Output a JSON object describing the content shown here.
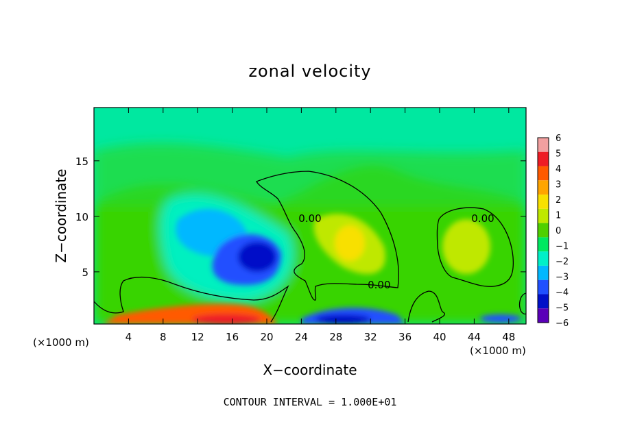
{
  "chart_data": {
    "type": "heatmap",
    "title": "zonal velocity",
    "xlabel": "X−coordinate",
    "ylabel": "Z−coordinate",
    "x_units_left": "(×1000 m)",
    "x_units_right": "(×1000 m)",
    "footer": "CONTOUR INTERVAL = 1.000E+01",
    "xlim": [
      0,
      50
    ],
    "ylim": [
      0.3,
      19.8
    ],
    "x_ticks": [
      4,
      8,
      12,
      16,
      20,
      24,
      28,
      32,
      36,
      40,
      44,
      48
    ],
    "y_ticks": [
      5,
      10,
      15
    ],
    "x_tick_labels": [
      "4",
      "8",
      "12",
      "16",
      "20",
      "24",
      "28",
      "32",
      "36",
      "40",
      "44",
      "48"
    ],
    "y_tick_labels": [
      "5",
      "10",
      "15"
    ],
    "colorbar": {
      "levels": [
        6,
        5,
        4,
        3,
        2,
        1,
        0,
        -1,
        -2,
        -3,
        -4,
        -5,
        -6
      ],
      "labels": [
        "6",
        "5",
        "4",
        "3",
        "2",
        "1",
        "0",
        "−1",
        "−2",
        "−3",
        "−4",
        "−5",
        "−6"
      ],
      "colors": [
        "#f2a0a0",
        "#ee1c25",
        "#ff5a00",
        "#ffa500",
        "#f8e000",
        "#bfe800",
        "#4fd000",
        "#00e860",
        "#00f0c8",
        "#00b8ff",
        "#2050ff",
        "#0010c8",
        "#5a00b8"
      ]
    },
    "background_value": -0.8,
    "features": [
      {
        "kind": "positive",
        "x": 29,
        "z": 7.5,
        "value": 1.8
      },
      {
        "kind": "positive",
        "x": 43,
        "z": 7,
        "value": 1.0
      },
      {
        "kind": "negative",
        "x": 18.5,
        "z": 6,
        "value": -4.5
      },
      {
        "kind": "negative",
        "x": 14,
        "z": 9,
        "value": -2.3
      },
      {
        "kind": "positive",
        "x": 16,
        "z": 1,
        "value": 4.5
      },
      {
        "kind": "negative",
        "x": 28,
        "z": 1,
        "value": -5.0
      }
    ],
    "contour_labels": [
      {
        "text": "0.00",
        "x": 25,
        "z": 9.5
      },
      {
        "text": "0.00",
        "x": 33,
        "z": 3.5
      },
      {
        "text": "0.00",
        "x": 45,
        "z": 9.5
      }
    ]
  }
}
